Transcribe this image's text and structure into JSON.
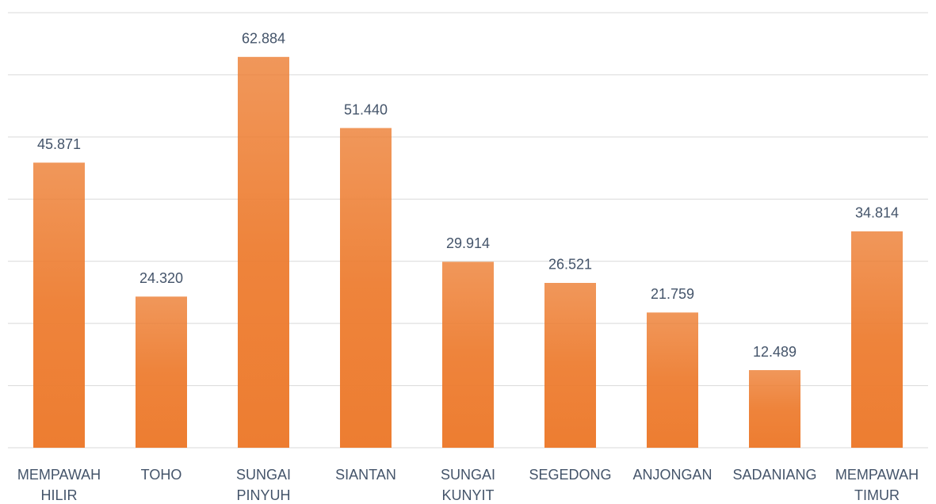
{
  "chart_data": {
    "type": "bar",
    "categories": [
      "MEMPAWAH HILIR",
      "TOHO",
      "SUNGAI PINYUH",
      "SIANTAN",
      "SUNGAI KUNYIT",
      "SEGEDONG",
      "ANJONGAN",
      "SADANIANG",
      "MEMPAWAH TIMUR"
    ],
    "values": [
      45871,
      24320,
      62884,
      51440,
      29914,
      26521,
      21759,
      12489,
      34814
    ],
    "value_labels": [
      "45.871",
      "24.320",
      "62.884",
      "51.440",
      "29.914",
      "26.521",
      "21.759",
      "12.489",
      "34.814"
    ],
    "color": "#ed7d31",
    "ylim": [
      0,
      70000
    ],
    "yticks": [
      0,
      10000,
      20000,
      30000,
      40000,
      50000,
      60000,
      70000
    ],
    "grid": true
  }
}
